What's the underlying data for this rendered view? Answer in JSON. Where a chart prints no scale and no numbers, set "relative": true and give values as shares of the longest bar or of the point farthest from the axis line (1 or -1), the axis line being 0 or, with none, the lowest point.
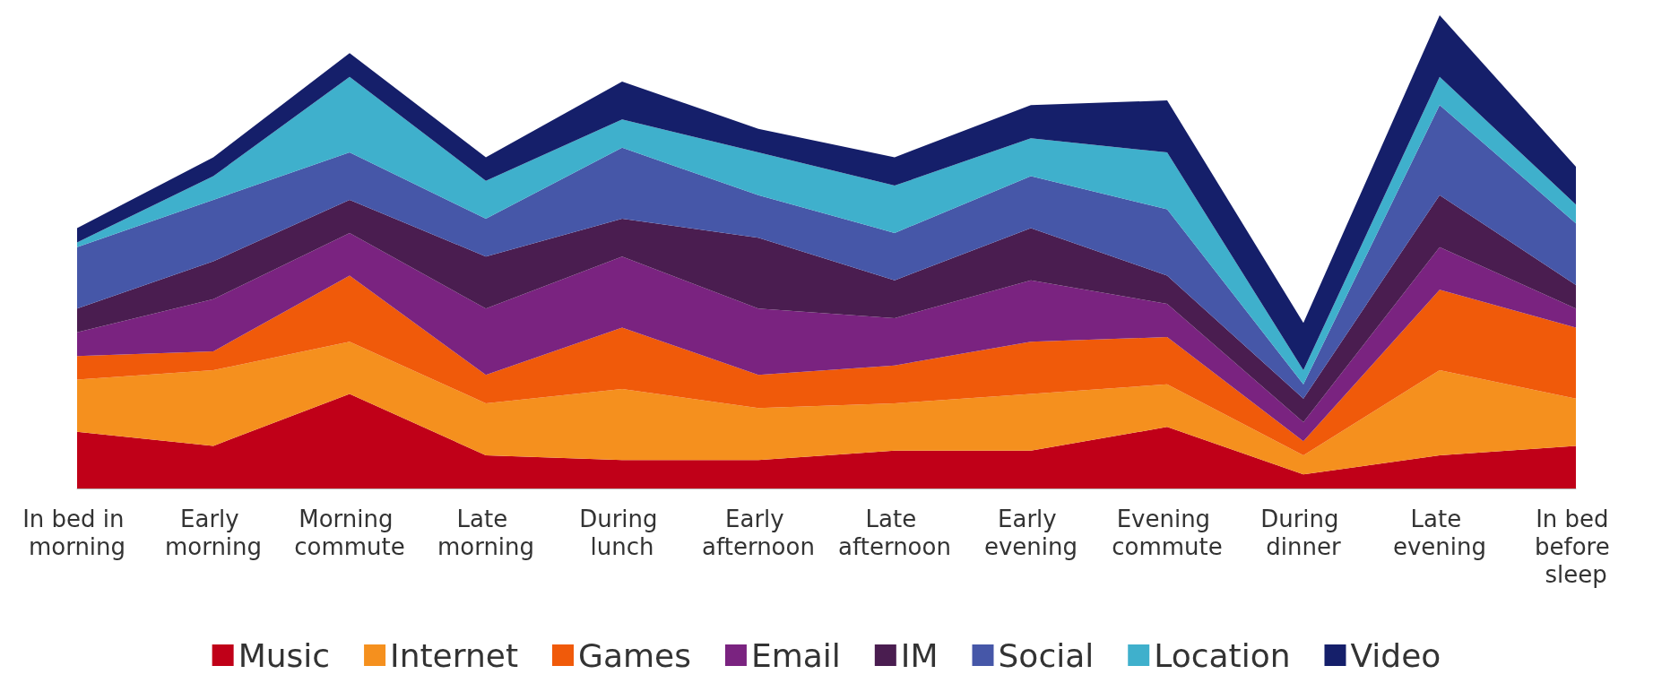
{
  "chart_data": {
    "type": "area",
    "stacked": true,
    "relative": true,
    "legend": "bottom",
    "grid": false,
    "categories": [
      "In bed in morning",
      "Early morning",
      "Morning commute",
      "Late morning",
      "During lunch",
      "Early afternoon",
      "Late afternoon",
      "Early evening",
      "Evening commute",
      "During dinner",
      "Late evening",
      "In bed before sleep"
    ],
    "series": [
      {
        "name": "Music",
        "color": "#c00018",
        "values": [
          0.12,
          0.09,
          0.2,
          0.07,
          0.06,
          0.06,
          0.08,
          0.08,
          0.13,
          0.03,
          0.07,
          0.09
        ]
      },
      {
        "name": "Internet",
        "color": "#f5901e",
        "values": [
          0.11,
          0.16,
          0.11,
          0.11,
          0.15,
          0.11,
          0.1,
          0.12,
          0.09,
          0.04,
          0.18,
          0.1
        ]
      },
      {
        "name": "Games",
        "color": "#f05a0a",
        "values": [
          0.05,
          0.04,
          0.14,
          0.06,
          0.13,
          0.07,
          0.08,
          0.11,
          0.1,
          0.03,
          0.17,
          0.15
        ]
      },
      {
        "name": "Email",
        "color": "#7a2380",
        "values": [
          0.05,
          0.11,
          0.09,
          0.14,
          0.15,
          0.14,
          0.1,
          0.13,
          0.07,
          0.04,
          0.09,
          0.04
        ]
      },
      {
        "name": "IM",
        "color": "#4a1d50",
        "values": [
          0.05,
          0.08,
          0.07,
          0.11,
          0.08,
          0.15,
          0.08,
          0.11,
          0.06,
          0.05,
          0.11,
          0.05
        ]
      },
      {
        "name": "Social",
        "color": "#4657a8",
        "values": [
          0.13,
          0.13,
          0.1,
          0.08,
          0.15,
          0.09,
          0.1,
          0.11,
          0.14,
          0.03,
          0.19,
          0.13
        ]
      },
      {
        "name": "Location",
        "color": "#3fb0cc",
        "values": [
          0.01,
          0.05,
          0.16,
          0.08,
          0.06,
          0.09,
          0.1,
          0.08,
          0.12,
          0.03,
          0.06,
          0.04
        ]
      },
      {
        "name": "Video",
        "color": "#151f6a",
        "values": [
          0.03,
          0.04,
          0.05,
          0.05,
          0.08,
          0.05,
          0.06,
          0.07,
          0.11,
          0.1,
          0.13,
          0.08
        ]
      }
    ]
  }
}
